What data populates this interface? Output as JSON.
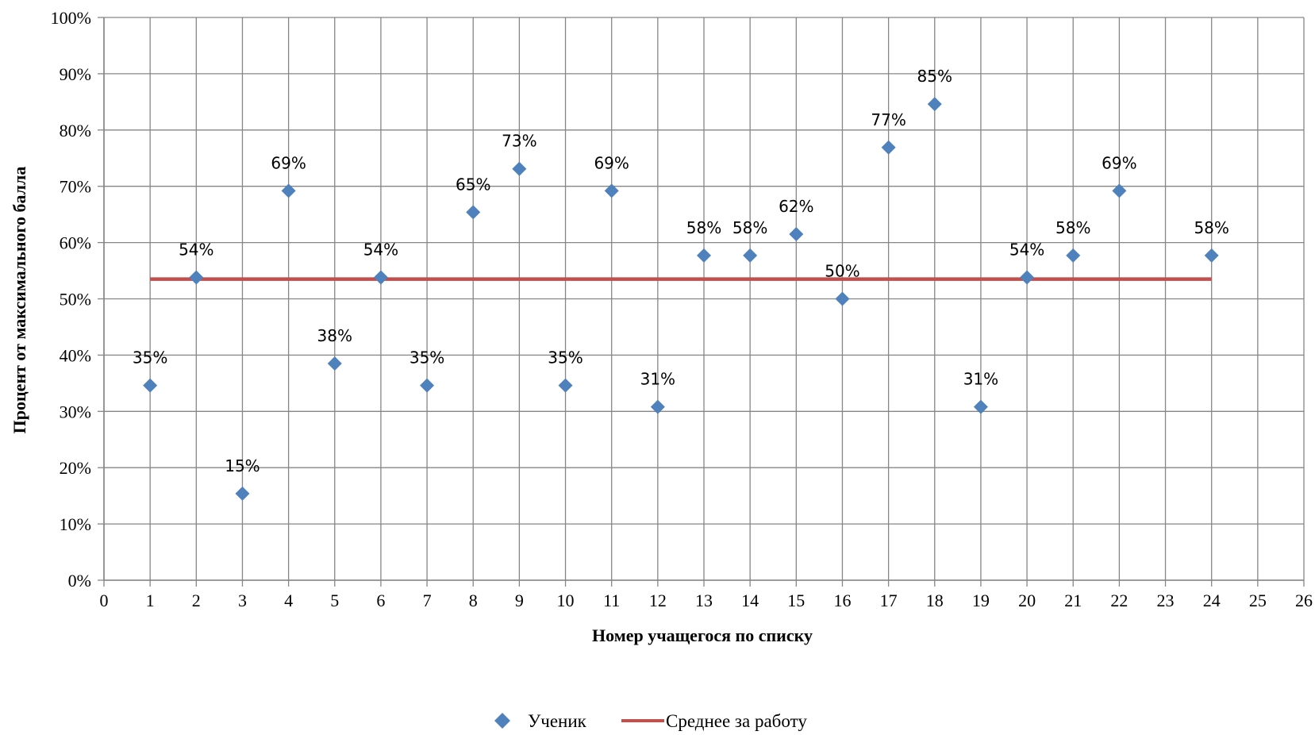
{
  "chart_data": {
    "type": "scatter",
    "xlabel": "Номер учащегося по списку",
    "ylabel": "Процент от максимального балла",
    "xlim": [
      0,
      26
    ],
    "ylim": [
      0,
      100
    ],
    "x_ticks": [
      "0",
      "1",
      "2",
      "3",
      "4",
      "5",
      "6",
      "7",
      "8",
      "9",
      "10",
      "11",
      "12",
      "13",
      "14",
      "15",
      "16",
      "17",
      "18",
      "19",
      "20",
      "21",
      "22",
      "23",
      "24",
      "25",
      "26"
    ],
    "y_ticks": [
      "0%",
      "10%",
      "20%",
      "30%",
      "40%",
      "50%",
      "60%",
      "70%",
      "80%",
      "90%",
      "100%"
    ],
    "grid": true,
    "legend_position": "bottom",
    "series": [
      {
        "name": "Ученик",
        "kind": "scatter",
        "marker": "diamond",
        "color": "#4F81BD",
        "x": [
          1,
          2,
          3,
          4,
          5,
          6,
          7,
          8,
          9,
          10,
          11,
          12,
          13,
          14,
          15,
          16,
          17,
          18,
          19,
          20,
          21,
          22,
          24
        ],
        "y": [
          34.6,
          53.8,
          15.4,
          69.2,
          38.5,
          53.8,
          34.6,
          65.4,
          73.1,
          34.6,
          69.2,
          30.8,
          57.7,
          57.7,
          61.5,
          50.0,
          76.9,
          84.6,
          30.8,
          53.8,
          57.7,
          69.2,
          57.7
        ],
        "labels": [
          "35%",
          "54%",
          "15%",
          "69%",
          "38%",
          "54%",
          "35%",
          "65%",
          "73%",
          "35%",
          "69%",
          "31%",
          "58%",
          "58%",
          "62%",
          "50%",
          "77%",
          "85%",
          "31%",
          "54%",
          "58%",
          "69%",
          "58%"
        ]
      },
      {
        "name": "Среднее за работу",
        "kind": "line",
        "color": "#C0504D",
        "x": [
          1,
          24
        ],
        "y": [
          53.5,
          53.5
        ]
      }
    ]
  }
}
